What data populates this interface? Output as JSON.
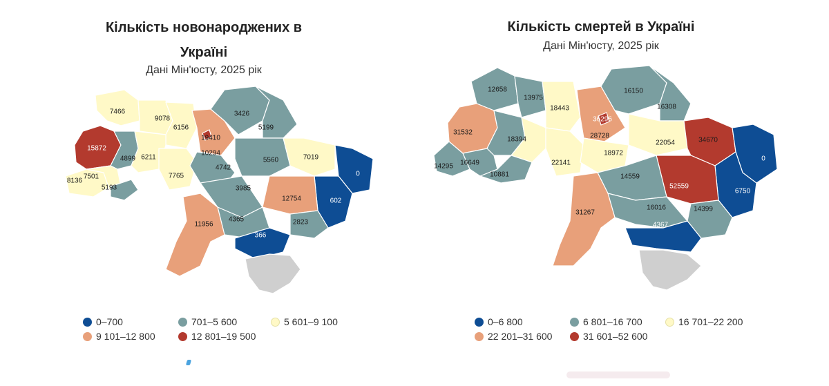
{
  "colors": {
    "dark_blue": "#0e4d94",
    "teal": "#7a9ea0",
    "cream": "#fff9c7",
    "peach": "#e8a07a",
    "red": "#b33a2e",
    "crimea": "#cfcfcf"
  },
  "births_map": {
    "title": "Кількість новонароджених в Україні",
    "subtitle": "Дані Мін'юсту, 2025 рік",
    "legend": [
      {
        "label": "0–700",
        "color": "#0e4d94"
      },
      {
        "label": "701–5 600",
        "color": "#7a9ea0"
      },
      {
        "label": "5 601–9 100",
        "color": "#fff9c7"
      },
      {
        "label": "9 101–12 800",
        "color": "#e8a07a"
      },
      {
        "label": "12 801–19 500",
        "color": "#b33a2e"
      }
    ],
    "region_values": [
      "7466",
      "9078",
      "6156",
      "3426",
      "15872",
      "4899",
      "6211",
      "19410",
      "10294",
      "5199",
      "8136",
      "7501",
      "5193",
      "7765",
      "4742",
      "5560",
      "7019",
      "0",
      "3985",
      "12754",
      "602",
      "11956",
      "4365",
      "366",
      "2823"
    ]
  },
  "deaths_map": {
    "title": "Кількість смертей в Україні",
    "subtitle": "Дані Мін'юсту, 2025 рік",
    "legend": [
      {
        "label": "0–6 800",
        "color": "#0e4d94"
      },
      {
        "label": "6 801–16 700",
        "color": "#7a9ea0"
      },
      {
        "label": "16 701–22 200",
        "color": "#fff9c7"
      },
      {
        "label": "22 201–31 600",
        "color": "#e8a07a"
      },
      {
        "label": "31 601–52 600",
        "color": "#b33a2e"
      }
    ],
    "region_values": [
      "12658",
      "13975",
      "18443",
      "16150",
      "16308",
      "31532",
      "18394",
      "36296",
      "28728",
      "22054",
      "34670",
      "14295",
      "16649",
      "10881",
      "22141",
      "18972",
      "0",
      "14559",
      "52559",
      "6750",
      "31267",
      "16016",
      "14399",
      "4367"
    ]
  }
}
